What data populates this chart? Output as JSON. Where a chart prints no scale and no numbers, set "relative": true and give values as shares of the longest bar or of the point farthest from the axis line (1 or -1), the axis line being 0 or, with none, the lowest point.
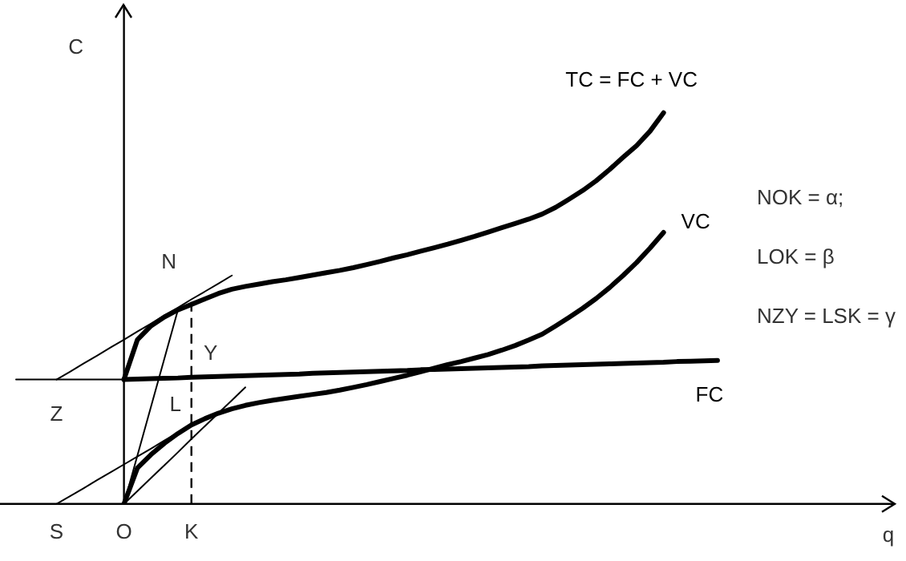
{
  "chart_data": {
    "type": "line",
    "relative": true,
    "xlabel": "q",
    "ylabel": "C",
    "tick_labels": "x",
    "marker": "none",
    "legend": false,
    "grid": false,
    "categories": [
      null,
      null,
      null,
      "S",
      null,
      null,
      null,
      null,
      "O",
      null,
      null,
      null,
      null,
      "K",
      null,
      null,
      null,
      null,
      null,
      null,
      null,
      null,
      null,
      null,
      null,
      null,
      null,
      null,
      null,
      null,
      null,
      null,
      null,
      null,
      null,
      null,
      null,
      null,
      null,
      null,
      null,
      null,
      null,
      null,
      null,
      null,
      null,
      null,
      null,
      null,
      null,
      null,
      null,
      null,
      null,
      null,
      null,
      null,
      null,
      null,
      null,
      null,
      null,
      null
    ],
    "series": [
      {
        "name": "TC = FC + VC",
        "color": "#000000",
        "values": [
          null,
          null,
          null,
          null,
          null,
          null,
          null,
          null,
          0.318,
          0.42,
          0.455,
          0.478,
          0.496,
          0.51,
          0.524,
          0.538,
          0.549,
          0.556,
          0.562,
          0.568,
          0.573,
          0.579,
          0.585,
          0.591,
          0.597,
          0.604,
          0.612,
          0.62,
          0.629,
          0.637,
          0.646,
          0.655,
          0.664,
          0.674,
          0.684,
          0.695,
          0.706,
          0.717,
          0.728,
          0.741,
          0.758,
          0.779,
          0.801,
          0.826,
          0.855,
          0.886,
          0.916,
          0.953,
          1,
          null,
          null,
          null,
          null,
          null,
          null,
          null,
          null,
          null,
          null,
          null,
          null,
          null,
          null,
          null
        ]
      },
      {
        "name": "VC",
        "color": "#000000",
        "values": [
          null,
          null,
          null,
          null,
          null,
          null,
          null,
          null,
          0,
          0.092,
          0.126,
          0.155,
          0.18,
          0.202,
          0.218,
          0.232,
          0.243,
          0.252,
          0.259,
          0.265,
          0.27,
          0.275,
          0.28,
          0.285,
          0.291,
          0.298,
          0.305,
          0.313,
          0.321,
          0.329,
          0.338,
          0.347,
          0.356,
          0.364,
          0.373,
          0.382,
          0.393,
          0.405,
          0.419,
          0.434,
          0.455,
          0.477,
          0.5,
          0.525,
          0.553,
          0.584,
          0.617,
          0.654,
          0.694,
          null,
          null,
          null,
          null,
          null,
          null,
          null,
          null,
          null,
          null,
          null,
          null,
          null,
          null,
          null
        ]
      },
      {
        "name": "FC",
        "color": "#000000",
        "values": [
          null,
          null,
          null,
          null,
          null,
          null,
          null,
          null,
          0.318,
          0.319,
          0.32,
          0.321,
          0.322,
          0.324,
          0.325,
          0.326,
          0.327,
          0.328,
          0.329,
          0.33,
          0.331,
          0.332,
          0.334,
          0.335,
          0.336,
          0.337,
          0.338,
          0.339,
          0.34,
          0.341,
          0.343,
          0.344,
          0.345,
          0.346,
          0.347,
          0.348,
          0.349,
          0.35,
          0.351,
          0.353,
          0.354,
          0.355,
          0.356,
          0.357,
          0.358,
          0.359,
          0.36,
          0.361,
          0.362,
          0.364,
          0.365,
          0.366,
          0.367,
          null,
          null,
          null,
          null,
          null,
          null,
          null,
          null,
          null,
          null,
          null
        ]
      },
      {
        "type": "line",
        "color": "#000000",
        "values": [
          0.318,
          0.318,
          0.318,
          0.318,
          0.318,
          0.318,
          0.318,
          0.318,
          0.318,
          null,
          null,
          null,
          null,
          null,
          null,
          null,
          null,
          null,
          null,
          null,
          null,
          null,
          null,
          null,
          null,
          null,
          null,
          null,
          null,
          null,
          null,
          null,
          null,
          null,
          null,
          null,
          null,
          null,
          null,
          null,
          null,
          null,
          null,
          null,
          null,
          null,
          null,
          null,
          null,
          null,
          null,
          null,
          null,
          null,
          null,
          null,
          null,
          null,
          null,
          null,
          null,
          null,
          null,
          null
        ]
      },
      {
        "type": "line",
        "color": "#000000",
        "values": [
          null,
          null,
          null,
          0.318,
          0.338,
          0.359,
          0.379,
          0.4,
          0.42,
          0.441,
          0.461,
          0.482,
          0.502,
          0.523,
          0.543,
          0.563,
          0.584,
          null,
          null,
          null,
          null,
          null,
          null,
          null,
          null,
          null,
          null,
          null,
          null,
          null,
          null,
          null,
          null,
          null,
          null,
          null,
          null,
          null,
          null,
          null,
          null,
          null,
          null,
          null,
          null,
          null,
          null,
          null,
          null,
          null,
          null,
          null,
          null,
          null,
          null,
          null,
          null,
          null,
          null,
          null,
          null,
          null,
          null,
          null
        ]
      },
      {
        "type": "line",
        "color": "#000000",
        "values": [
          null,
          null,
          null,
          null,
          null,
          null,
          null,
          null,
          0,
          0.124,
          0.248,
          0.372,
          0.496,
          null,
          null,
          null,
          null,
          null,
          null,
          null,
          null,
          null,
          null,
          null,
          null,
          null,
          null,
          null,
          null,
          null,
          null,
          null,
          null,
          null,
          null,
          null,
          null,
          null,
          null,
          null,
          null,
          null,
          null,
          null,
          null,
          null,
          null,
          null,
          null,
          null,
          null,
          null,
          null,
          null,
          null,
          null,
          null,
          null,
          null,
          null,
          null,
          null,
          null,
          null
        ]
      },
      {
        "type": "line",
        "color": "#000000",
        "values": [
          null,
          null,
          null,
          0,
          0.02,
          0.04,
          0.061,
          0.081,
          0.101,
          0.121,
          0.141,
          0.162,
          0.182,
          0.202,
          null,
          null,
          null,
          null,
          null,
          null,
          null,
          null,
          null,
          null,
          null,
          null,
          null,
          null,
          null,
          null,
          null,
          null,
          null,
          null,
          null,
          null,
          null,
          null,
          null,
          null,
          null,
          null,
          null,
          null,
          null,
          null,
          null,
          null,
          null,
          null,
          null,
          null,
          null,
          null,
          null,
          null,
          null,
          null,
          null,
          null,
          null,
          null,
          null,
          null
        ]
      },
      {
        "type": "line",
        "color": "#000000",
        "values": [
          null,
          null,
          null,
          null,
          null,
          null,
          null,
          null,
          0,
          0.033,
          0.066,
          0.099,
          0.132,
          0.166,
          0.199,
          0.232,
          0.265,
          0.298,
          null,
          null,
          null,
          null,
          null,
          null,
          null,
          null,
          null,
          null,
          null,
          null,
          null,
          null,
          null,
          null,
          null,
          null,
          null,
          null,
          null,
          null,
          null,
          null,
          null,
          null,
          null,
          null,
          null,
          null,
          null,
          null,
          null,
          null,
          null,
          null,
          null,
          null,
          null,
          null,
          null,
          null,
          null,
          null,
          null,
          null
        ]
      }
    ],
    "ref_lines": [
      {
        "axis": "x",
        "value": "K",
        "color": "#000000",
        "line_style": "dashed"
      }
    ],
    "annotations": [
      {
        "text": "N",
        "x": "K",
        "y": 0.51
      },
      {
        "text": "Y",
        "x": "K",
        "y": 0.318
      },
      {
        "text": "L",
        "x": "K",
        "y": 0.202
      },
      {
        "text": "Z",
        "x": "S",
        "y": 0.318
      },
      "NOK = α;",
      "LOK = β",
      "NZY = LSK = γ"
    ]
  }
}
